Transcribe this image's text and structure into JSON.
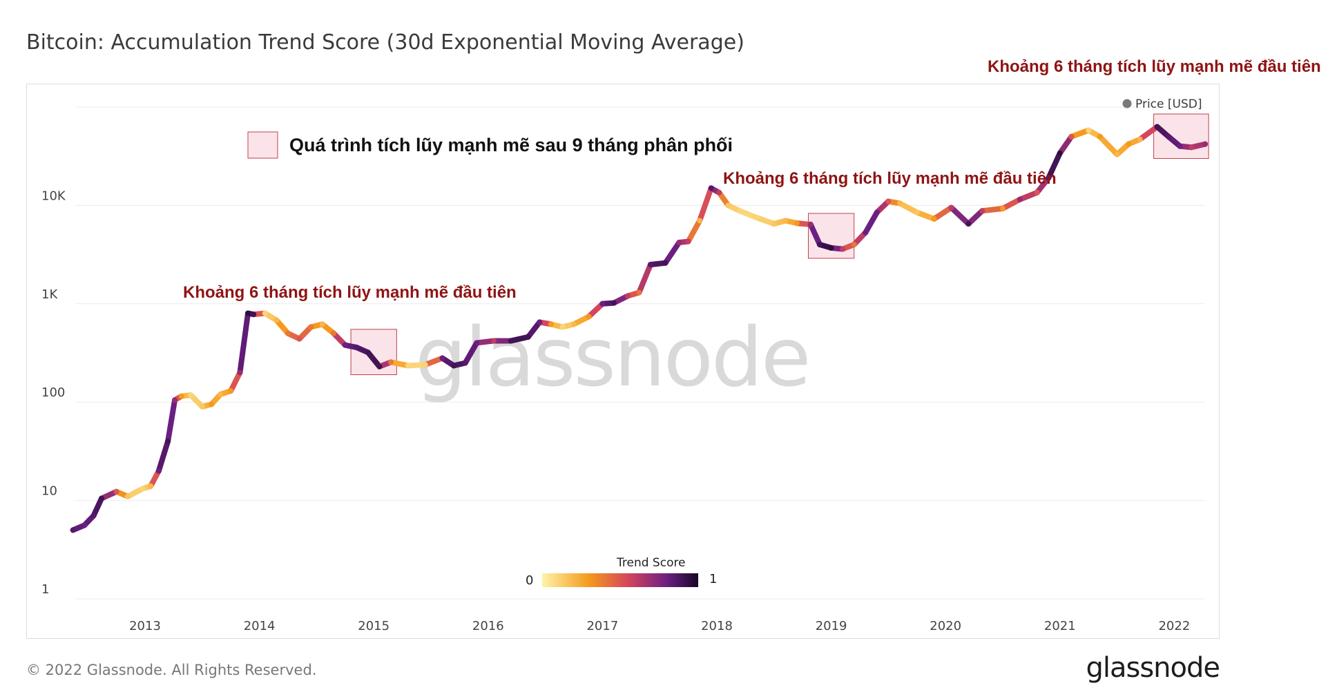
{
  "title": "Bitcoin: Accumulation Trend Score (30d Exponential Moving Average)",
  "footer": {
    "copyright": "© 2022 Glassnode. All Rights Reserved.",
    "brand": "glassnode"
  },
  "watermark": "glassnode",
  "colors": {
    "annotation": "#8f1414",
    "highlight_fill": "#fbe3ea",
    "highlight_stroke": "#c0404a",
    "grid": "#ececec",
    "score_low": "#fde68f",
    "score_mid": "#f0831a",
    "score_high": "#1c0a3c"
  },
  "legend": {
    "label": "Price [USD]",
    "marker_color": "#7a7a7a"
  },
  "annotations": {
    "box_label": "Quá trình tích lũy mạnh mẽ sau 9 tháng phân phối",
    "first": "Khoảng 6 tháng tích lũy mạnh mẽ đầu tiên",
    "second": "Khoảng 6 tháng tích lũy mạnh mẽ đầu tiên",
    "third": "Khoảng 6 tháng tích lũy mạnh mẽ đầu tiên"
  },
  "colorbar": {
    "title": "Trend Score",
    "min_label": "0",
    "max_label": "1"
  },
  "chart_data": {
    "type": "line",
    "title": "Bitcoin: Accumulation Trend Score (30d Exponential Moving Average)",
    "y_scale": "log",
    "y_ticks": [
      {
        "value": 1,
        "label": "1"
      },
      {
        "value": 10,
        "label": "10"
      },
      {
        "value": 100,
        "label": "100"
      },
      {
        "value": 1000,
        "label": "1K"
      },
      {
        "value": 10000,
        "label": "10K"
      }
    ],
    "x_ticks": [
      "2013",
      "2014",
      "2015",
      "2016",
      "2017",
      "2018",
      "2019",
      "2020",
      "2021",
      "2022"
    ],
    "x_range": [
      2012.37,
      2022.27
    ],
    "y_range": [
      1,
      100000
    ],
    "series": [
      {
        "name": "Price [USD]",
        "color_by": "Trend Score",
        "points": [
          {
            "x": 2012.37,
            "y": 5.0,
            "score": 0.85
          },
          {
            "x": 2012.47,
            "y": 5.6,
            "score": 0.8
          },
          {
            "x": 2012.55,
            "y": 7.0,
            "score": 0.85
          },
          {
            "x": 2012.62,
            "y": 10.5,
            "score": 0.9
          },
          {
            "x": 2012.75,
            "y": 12.3,
            "score": 0.5
          },
          {
            "x": 2012.85,
            "y": 11.0,
            "score": 0.15
          },
          {
            "x": 2012.98,
            "y": 13.2,
            "score": 0.1
          },
          {
            "x": 2013.05,
            "y": 14.0,
            "score": 0.2
          },
          {
            "x": 2013.12,
            "y": 20.0,
            "score": 0.8
          },
          {
            "x": 2013.2,
            "y": 40.0,
            "score": 0.9
          },
          {
            "x": 2013.26,
            "y": 105.0,
            "score": 0.7
          },
          {
            "x": 2013.32,
            "y": 115.0,
            "score": 0.3
          },
          {
            "x": 2013.4,
            "y": 118.0,
            "score": 0.1
          },
          {
            "x": 2013.5,
            "y": 90.0,
            "score": 0.15
          },
          {
            "x": 2013.58,
            "y": 95.0,
            "score": 0.3
          },
          {
            "x": 2013.66,
            "y": 120.0,
            "score": 0.2
          },
          {
            "x": 2013.75,
            "y": 130.0,
            "score": 0.3
          },
          {
            "x": 2013.83,
            "y": 200.0,
            "score": 0.7
          },
          {
            "x": 2013.9,
            "y": 800.0,
            "score": 0.95
          },
          {
            "x": 2013.95,
            "y": 780.0,
            "score": 0.9
          },
          {
            "x": 2014.05,
            "y": 800.0,
            "score": 0.1
          },
          {
            "x": 2014.15,
            "y": 680.0,
            "score": 0.2
          },
          {
            "x": 2014.25,
            "y": 500.0,
            "score": 0.4
          },
          {
            "x": 2014.35,
            "y": 440.0,
            "score": 0.5
          },
          {
            "x": 2014.45,
            "y": 580.0,
            "score": 0.4
          },
          {
            "x": 2014.55,
            "y": 620.0,
            "score": 0.2
          },
          {
            "x": 2014.65,
            "y": 500.0,
            "score": 0.4
          },
          {
            "x": 2014.75,
            "y": 380.0,
            "score": 0.8
          },
          {
            "x": 2014.85,
            "y": 360.0,
            "score": 0.85
          },
          {
            "x": 2014.95,
            "y": 320.0,
            "score": 0.9
          },
          {
            "x": 2015.05,
            "y": 230.0,
            "score": 0.9
          },
          {
            "x": 2015.15,
            "y": 255.0,
            "score": 0.4
          },
          {
            "x": 2015.3,
            "y": 235.0,
            "score": 0.1
          },
          {
            "x": 2015.45,
            "y": 240.0,
            "score": 0.1
          },
          {
            "x": 2015.6,
            "y": 280.0,
            "score": 0.8
          },
          {
            "x": 2015.7,
            "y": 235.0,
            "score": 0.9
          },
          {
            "x": 2015.8,
            "y": 250.0,
            "score": 0.85
          },
          {
            "x": 2015.9,
            "y": 400.0,
            "score": 0.8
          },
          {
            "x": 2016.05,
            "y": 420.0,
            "score": 0.6
          },
          {
            "x": 2016.2,
            "y": 420.0,
            "score": 0.9
          },
          {
            "x": 2016.35,
            "y": 460.0,
            "score": 0.9
          },
          {
            "x": 2016.45,
            "y": 650.0,
            "score": 0.8
          },
          {
            "x": 2016.55,
            "y": 620.0,
            "score": 0.3
          },
          {
            "x": 2016.65,
            "y": 580.0,
            "score": 0.1
          },
          {
            "x": 2016.75,
            "y": 620.0,
            "score": 0.2
          },
          {
            "x": 2016.88,
            "y": 740.0,
            "score": 0.3
          },
          {
            "x": 2017.0,
            "y": 1000.0,
            "score": 0.8
          },
          {
            "x": 2017.1,
            "y": 1020.0,
            "score": 0.9
          },
          {
            "x": 2017.22,
            "y": 1200.0,
            "score": 0.6
          },
          {
            "x": 2017.32,
            "y": 1300.0,
            "score": 0.4
          },
          {
            "x": 2017.42,
            "y": 2500.0,
            "score": 0.85
          },
          {
            "x": 2017.55,
            "y": 2600.0,
            "score": 0.9
          },
          {
            "x": 2017.67,
            "y": 4200.0,
            "score": 0.7
          },
          {
            "x": 2017.75,
            "y": 4300.0,
            "score": 0.6
          },
          {
            "x": 2017.85,
            "y": 7000.0,
            "score": 0.2
          },
          {
            "x": 2017.95,
            "y": 15000.0,
            "score": 0.85
          },
          {
            "x": 2018.02,
            "y": 13500.0,
            "score": 0.6
          },
          {
            "x": 2018.1,
            "y": 10000.0,
            "score": 0.15
          },
          {
            "x": 2018.2,
            "y": 8800.0,
            "score": 0.1
          },
          {
            "x": 2018.35,
            "y": 7500.0,
            "score": 0.1
          },
          {
            "x": 2018.5,
            "y": 6500.0,
            "score": 0.15
          },
          {
            "x": 2018.6,
            "y": 7000.0,
            "score": 0.2
          },
          {
            "x": 2018.7,
            "y": 6600.0,
            "score": 0.3
          },
          {
            "x": 2018.82,
            "y": 6400.0,
            "score": 0.7
          },
          {
            "x": 2018.9,
            "y": 4000.0,
            "score": 0.9
          },
          {
            "x": 2019.0,
            "y": 3700.0,
            "score": 0.95
          },
          {
            "x": 2019.1,
            "y": 3600.0,
            "score": 0.6
          },
          {
            "x": 2019.2,
            "y": 4000.0,
            "score": 0.4
          },
          {
            "x": 2019.3,
            "y": 5300.0,
            "score": 0.8
          },
          {
            "x": 2019.4,
            "y": 8500.0,
            "score": 0.8
          },
          {
            "x": 2019.5,
            "y": 11000.0,
            "score": 0.5
          },
          {
            "x": 2019.6,
            "y": 10500.0,
            "score": 0.2
          },
          {
            "x": 2019.75,
            "y": 8500.0,
            "score": 0.15
          },
          {
            "x": 2019.9,
            "y": 7300.0,
            "score": 0.3
          },
          {
            "x": 2020.05,
            "y": 9500.0,
            "score": 0.6
          },
          {
            "x": 2020.2,
            "y": 6500.0,
            "score": 0.9
          },
          {
            "x": 2020.32,
            "y": 8800.0,
            "score": 0.6
          },
          {
            "x": 2020.5,
            "y": 9300.0,
            "score": 0.3
          },
          {
            "x": 2020.65,
            "y": 11500.0,
            "score": 0.7
          },
          {
            "x": 2020.8,
            "y": 13500.0,
            "score": 0.5
          },
          {
            "x": 2020.9,
            "y": 19000.0,
            "score": 0.85
          },
          {
            "x": 2021.0,
            "y": 34000.0,
            "score": 0.95
          },
          {
            "x": 2021.1,
            "y": 50000.0,
            "score": 0.5
          },
          {
            "x": 2021.25,
            "y": 58000.0,
            "score": 0.1
          },
          {
            "x": 2021.35,
            "y": 50000.0,
            "score": 0.3
          },
          {
            "x": 2021.5,
            "y": 33000.0,
            "score": 0.2
          },
          {
            "x": 2021.6,
            "y": 42000.0,
            "score": 0.3
          },
          {
            "x": 2021.7,
            "y": 47000.0,
            "score": 0.2
          },
          {
            "x": 2021.85,
            "y": 63000.0,
            "score": 0.9
          },
          {
            "x": 2021.95,
            "y": 50000.0,
            "score": 0.85
          },
          {
            "x": 2022.05,
            "y": 40000.0,
            "score": 0.8
          },
          {
            "x": 2022.15,
            "y": 39000.0,
            "score": 0.6
          },
          {
            "x": 2022.27,
            "y": 42000.0,
            "score": 0.7
          }
        ]
      }
    ],
    "highlight_periods": [
      {
        "x0": 2014.8,
        "x1": 2015.2,
        "y0": 190,
        "y1": 550
      },
      {
        "x0": 2018.8,
        "x1": 2019.2,
        "y0": 2900,
        "y1": 8300
      },
      {
        "x0": 2021.82,
        "x1": 2022.3,
        "y0": 30000,
        "y1": 85000
      }
    ]
  }
}
